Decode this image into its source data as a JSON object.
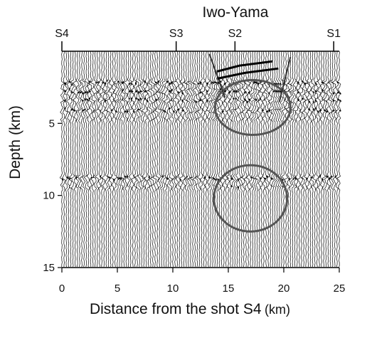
{
  "chart_data": {
    "type": "seismic-section",
    "title": "Iwo-Yama",
    "xlabel_main": "Distance from the shot S4",
    "xlabel_unit": "(km)",
    "ylabel": "Depth (km)",
    "xlim": [
      0,
      25
    ],
    "ylim": [
      15,
      0
    ],
    "x_ticks": [
      0,
      5,
      10,
      15,
      20,
      25
    ],
    "y_ticks": [
      5,
      10,
      15
    ],
    "shot_points": [
      {
        "label": "S4",
        "x": 0
      },
      {
        "label": "S3",
        "x": 10.3
      },
      {
        "label": "S2",
        "x": 15.6
      },
      {
        "label": "S1",
        "x": 24.5
      }
    ],
    "trace_spacing_km": 0.2,
    "reflectors": [
      {
        "depth": 2.2,
        "strength": 1.0
      },
      {
        "depth": 2.8,
        "strength": 1.0
      },
      {
        "depth": 3.4,
        "strength": 0.9
      },
      {
        "depth": 4.1,
        "strength": 0.9
      },
      {
        "depth": 4.7,
        "strength": 0.5
      },
      {
        "depth": 8.8,
        "strength": 1.0
      },
      {
        "depth": 9.4,
        "strength": 0.6
      }
    ],
    "anomalies": [
      {
        "shape": "ellipse",
        "cx": 17.2,
        "cy": 3.9,
        "rx": 3.4,
        "ry": 1.9
      },
      {
        "shape": "ellipse",
        "cx": 17.0,
        "cy": 10.2,
        "rx": 3.3,
        "ry": 2.3
      }
    ],
    "fault_lines": [
      {
        "points": [
          [
            13.3,
            0.2
          ],
          [
            14.7,
            3.2
          ]
        ]
      },
      {
        "points": [
          [
            20.6,
            0.4
          ],
          [
            19.6,
            3.5
          ]
        ]
      }
    ],
    "near_surface_reflections": [
      {
        "points": [
          [
            14.0,
            1.4
          ],
          [
            16.0,
            1.0
          ],
          [
            19.0,
            0.7
          ]
        ]
      },
      {
        "points": [
          [
            14.0,
            1.9
          ],
          [
            16.5,
            1.5
          ],
          [
            19.5,
            1.2
          ]
        ]
      }
    ]
  }
}
